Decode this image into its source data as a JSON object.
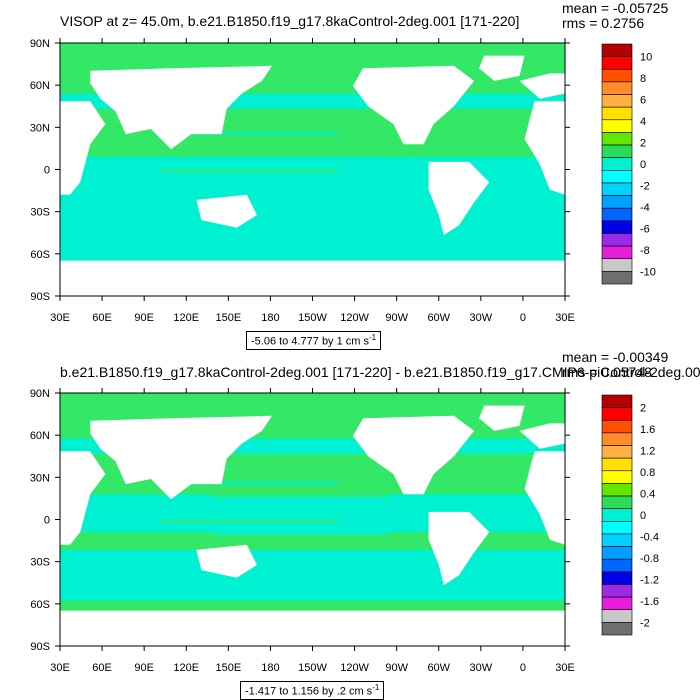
{
  "panels": [
    {
      "title": "VISOP at z=  45.0m, b.e21.B1850.f19_g17.8kaControl-2deg.001 [171-220]",
      "mean": "mean = -0.05725",
      "rms": "rms = 0.2756",
      "range": "-5.06 to 4.777 by 1 cm s",
      "range_sup": "-1",
      "colorbar_labels": [
        "10",
        "8",
        "6",
        "4",
        "2",
        "0",
        "-2",
        "-4",
        "-6",
        "-8",
        "-10"
      ]
    },
    {
      "title": "b.e21.B1850.f19_g17.8kaControl-2deg.001 [171-220] - b.e21.B1850.f19_g17.CMIP6-piControl-2deg.001",
      "mean": "mean = -0.00349",
      "rms": "rms = 0.05748",
      "range": "-1.417 to 1.156 by .2 cm s",
      "range_sup": "-1",
      "colorbar_labels": [
        "2",
        "1.6",
        "1.2",
        "0.8",
        "0.4",
        "0",
        "-0.4",
        "-0.8",
        "-1.2",
        "-1.6",
        "-2"
      ]
    }
  ],
  "lat_labels": [
    "90N",
    "60N",
    "30N",
    "0",
    "30S",
    "60S",
    "90S"
  ],
  "lon_labels": [
    "30E",
    "60E",
    "90E",
    "120E",
    "150E",
    "180",
    "150W",
    "120W",
    "90W",
    "60W",
    "30W",
    "0",
    "30E"
  ],
  "colors": {
    "ocean_green": "#33e866",
    "ocean_cyan": "#00f0d2",
    "land": "#ffffff",
    "colorbar": [
      "#b40000",
      "#ff0000",
      "#ff5000",
      "#ff8c2a",
      "#ffb040",
      "#ffe000",
      "#ffff00",
      "#64e600",
      "#2adc5a",
      "#00f0d2",
      "#00ffff",
      "#00d2ff",
      "#00a0ff",
      "#0064ff",
      "#0000e6",
      "#9b2ae6",
      "#e61edc",
      "#c8c8c8",
      "#6e6e6e"
    ]
  }
}
